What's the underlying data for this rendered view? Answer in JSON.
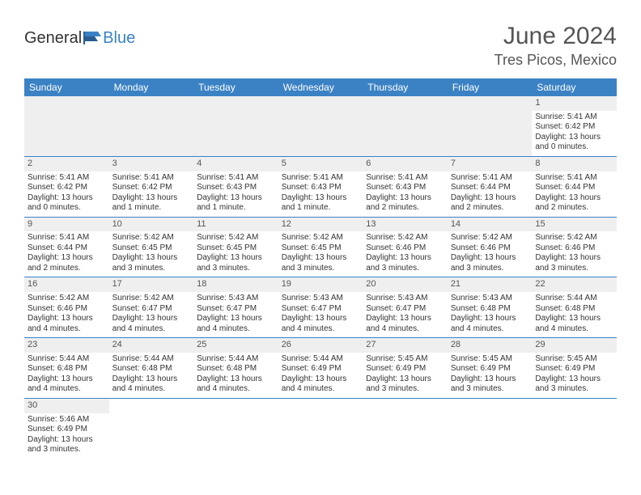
{
  "brand": {
    "part1": "General",
    "part2": "Blue"
  },
  "title": {
    "month": "June 2024",
    "location": "Tres Picos, Mexico"
  },
  "colors": {
    "accent": "#3b82c4",
    "headerText": "#ffffff",
    "dayBg": "#efefef"
  },
  "weekdays": [
    "Sunday",
    "Monday",
    "Tuesday",
    "Wednesday",
    "Thursday",
    "Friday",
    "Saturday"
  ],
  "weeks": [
    [
      null,
      null,
      null,
      null,
      null,
      null,
      {
        "n": "1",
        "sr": "Sunrise: 5:41 AM",
        "ss": "Sunset: 6:42 PM",
        "d1": "Daylight: 13 hours",
        "d2": "and 0 minutes."
      }
    ],
    [
      {
        "n": "2",
        "sr": "Sunrise: 5:41 AM",
        "ss": "Sunset: 6:42 PM",
        "d1": "Daylight: 13 hours",
        "d2": "and 0 minutes."
      },
      {
        "n": "3",
        "sr": "Sunrise: 5:41 AM",
        "ss": "Sunset: 6:42 PM",
        "d1": "Daylight: 13 hours",
        "d2": "and 1 minute."
      },
      {
        "n": "4",
        "sr": "Sunrise: 5:41 AM",
        "ss": "Sunset: 6:43 PM",
        "d1": "Daylight: 13 hours",
        "d2": "and 1 minute."
      },
      {
        "n": "5",
        "sr": "Sunrise: 5:41 AM",
        "ss": "Sunset: 6:43 PM",
        "d1": "Daylight: 13 hours",
        "d2": "and 1 minute."
      },
      {
        "n": "6",
        "sr": "Sunrise: 5:41 AM",
        "ss": "Sunset: 6:43 PM",
        "d1": "Daylight: 13 hours",
        "d2": "and 2 minutes."
      },
      {
        "n": "7",
        "sr": "Sunrise: 5:41 AM",
        "ss": "Sunset: 6:44 PM",
        "d1": "Daylight: 13 hours",
        "d2": "and 2 minutes."
      },
      {
        "n": "8",
        "sr": "Sunrise: 5:41 AM",
        "ss": "Sunset: 6:44 PM",
        "d1": "Daylight: 13 hours",
        "d2": "and 2 minutes."
      }
    ],
    [
      {
        "n": "9",
        "sr": "Sunrise: 5:41 AM",
        "ss": "Sunset: 6:44 PM",
        "d1": "Daylight: 13 hours",
        "d2": "and 2 minutes."
      },
      {
        "n": "10",
        "sr": "Sunrise: 5:42 AM",
        "ss": "Sunset: 6:45 PM",
        "d1": "Daylight: 13 hours",
        "d2": "and 3 minutes."
      },
      {
        "n": "11",
        "sr": "Sunrise: 5:42 AM",
        "ss": "Sunset: 6:45 PM",
        "d1": "Daylight: 13 hours",
        "d2": "and 3 minutes."
      },
      {
        "n": "12",
        "sr": "Sunrise: 5:42 AM",
        "ss": "Sunset: 6:45 PM",
        "d1": "Daylight: 13 hours",
        "d2": "and 3 minutes."
      },
      {
        "n": "13",
        "sr": "Sunrise: 5:42 AM",
        "ss": "Sunset: 6:46 PM",
        "d1": "Daylight: 13 hours",
        "d2": "and 3 minutes."
      },
      {
        "n": "14",
        "sr": "Sunrise: 5:42 AM",
        "ss": "Sunset: 6:46 PM",
        "d1": "Daylight: 13 hours",
        "d2": "and 3 minutes."
      },
      {
        "n": "15",
        "sr": "Sunrise: 5:42 AM",
        "ss": "Sunset: 6:46 PM",
        "d1": "Daylight: 13 hours",
        "d2": "and 3 minutes."
      }
    ],
    [
      {
        "n": "16",
        "sr": "Sunrise: 5:42 AM",
        "ss": "Sunset: 6:46 PM",
        "d1": "Daylight: 13 hours",
        "d2": "and 4 minutes."
      },
      {
        "n": "17",
        "sr": "Sunrise: 5:42 AM",
        "ss": "Sunset: 6:47 PM",
        "d1": "Daylight: 13 hours",
        "d2": "and 4 minutes."
      },
      {
        "n": "18",
        "sr": "Sunrise: 5:43 AM",
        "ss": "Sunset: 6:47 PM",
        "d1": "Daylight: 13 hours",
        "d2": "and 4 minutes."
      },
      {
        "n": "19",
        "sr": "Sunrise: 5:43 AM",
        "ss": "Sunset: 6:47 PM",
        "d1": "Daylight: 13 hours",
        "d2": "and 4 minutes."
      },
      {
        "n": "20",
        "sr": "Sunrise: 5:43 AM",
        "ss": "Sunset: 6:47 PM",
        "d1": "Daylight: 13 hours",
        "d2": "and 4 minutes."
      },
      {
        "n": "21",
        "sr": "Sunrise: 5:43 AM",
        "ss": "Sunset: 6:48 PM",
        "d1": "Daylight: 13 hours",
        "d2": "and 4 minutes."
      },
      {
        "n": "22",
        "sr": "Sunrise: 5:44 AM",
        "ss": "Sunset: 6:48 PM",
        "d1": "Daylight: 13 hours",
        "d2": "and 4 minutes."
      }
    ],
    [
      {
        "n": "23",
        "sr": "Sunrise: 5:44 AM",
        "ss": "Sunset: 6:48 PM",
        "d1": "Daylight: 13 hours",
        "d2": "and 4 minutes."
      },
      {
        "n": "24",
        "sr": "Sunrise: 5:44 AM",
        "ss": "Sunset: 6:48 PM",
        "d1": "Daylight: 13 hours",
        "d2": "and 4 minutes."
      },
      {
        "n": "25",
        "sr": "Sunrise: 5:44 AM",
        "ss": "Sunset: 6:48 PM",
        "d1": "Daylight: 13 hours",
        "d2": "and 4 minutes."
      },
      {
        "n": "26",
        "sr": "Sunrise: 5:44 AM",
        "ss": "Sunset: 6:49 PM",
        "d1": "Daylight: 13 hours",
        "d2": "and 4 minutes."
      },
      {
        "n": "27",
        "sr": "Sunrise: 5:45 AM",
        "ss": "Sunset: 6:49 PM",
        "d1": "Daylight: 13 hours",
        "d2": "and 3 minutes."
      },
      {
        "n": "28",
        "sr": "Sunrise: 5:45 AM",
        "ss": "Sunset: 6:49 PM",
        "d1": "Daylight: 13 hours",
        "d2": "and 3 minutes."
      },
      {
        "n": "29",
        "sr": "Sunrise: 5:45 AM",
        "ss": "Sunset: 6:49 PM",
        "d1": "Daylight: 13 hours",
        "d2": "and 3 minutes."
      }
    ],
    [
      {
        "n": "30",
        "sr": "Sunrise: 5:46 AM",
        "ss": "Sunset: 6:49 PM",
        "d1": "Daylight: 13 hours",
        "d2": "and 3 minutes."
      },
      null,
      null,
      null,
      null,
      null,
      null
    ]
  ]
}
